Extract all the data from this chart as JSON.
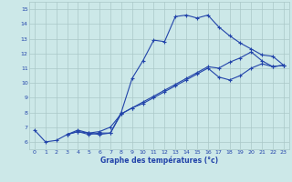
{
  "title": "Graphe des températures (°c)",
  "background_color": "#cce8e8",
  "grid_color": "#aac8c8",
  "line_color": "#2244aa",
  "xlim": [
    -0.5,
    23.5
  ],
  "ylim": [
    5.5,
    15.5
  ],
  "xticks": [
    0,
    1,
    2,
    3,
    4,
    5,
    6,
    7,
    8,
    9,
    10,
    11,
    12,
    13,
    14,
    15,
    16,
    17,
    18,
    19,
    20,
    21,
    22,
    23
  ],
  "yticks": [
    6,
    7,
    8,
    9,
    10,
    11,
    12,
    13,
    14,
    15
  ],
  "line1": {
    "x": [
      0,
      1,
      2,
      3,
      4,
      5,
      6,
      7,
      8,
      9,
      10,
      11,
      12,
      13,
      14,
      15,
      16,
      17,
      18,
      19,
      20,
      21,
      22,
      23
    ],
    "y": [
      6.8,
      6.0,
      6.1,
      6.5,
      6.7,
      6.5,
      6.6,
      6.6,
      8.0,
      10.3,
      11.5,
      12.9,
      12.8,
      14.5,
      14.6,
      14.4,
      14.6,
      13.8,
      13.2,
      12.7,
      12.3,
      11.9,
      11.8,
      11.2
    ]
  },
  "line2": {
    "x": [
      3,
      4,
      5,
      6,
      7,
      8,
      9,
      10,
      11,
      12,
      13,
      14,
      15,
      16,
      17,
      18,
      19,
      20,
      21,
      22,
      23
    ],
    "y": [
      6.5,
      6.7,
      6.6,
      6.7,
      7.0,
      7.9,
      8.3,
      8.7,
      9.1,
      9.5,
      9.9,
      10.3,
      10.7,
      11.1,
      11.0,
      11.4,
      11.7,
      12.1,
      11.5,
      11.1,
      11.2
    ]
  },
  "line3": {
    "x": [
      3,
      4,
      5,
      6,
      7,
      8,
      9,
      10,
      11,
      12,
      13,
      14,
      15,
      16,
      17,
      18,
      19,
      20,
      21,
      22,
      23
    ],
    "y": [
      6.5,
      6.8,
      6.6,
      6.5,
      6.6,
      7.9,
      8.3,
      8.6,
      9.0,
      9.4,
      9.8,
      10.2,
      10.6,
      11.0,
      10.4,
      10.2,
      10.5,
      11.0,
      11.3,
      11.1,
      11.2
    ]
  }
}
